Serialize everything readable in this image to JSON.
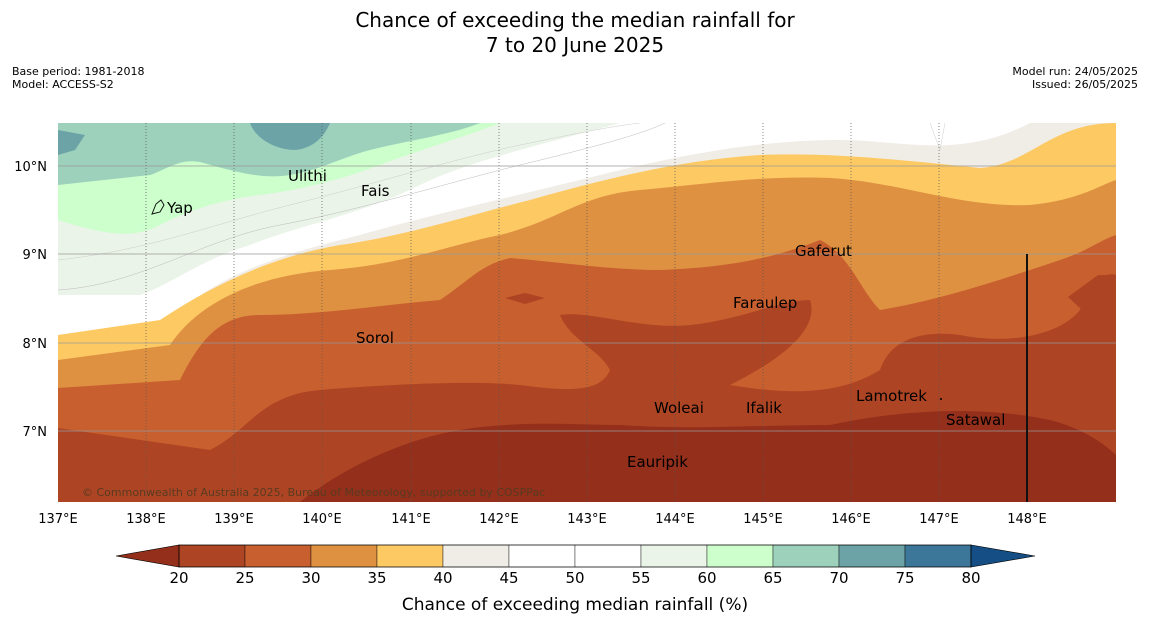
{
  "title_line1": "Chance of exceeding the median rainfall for",
  "title_line2": "7 to 20 June 2025",
  "meta_left": [
    "Base period: 1981-2018",
    "Model: ACCESS-S2"
  ],
  "meta_right": [
    "Model run: 24/05/2025",
    "Issued: 26/05/2025"
  ],
  "map": {
    "lon_ticks": [
      "137°E",
      "138°E",
      "139°E",
      "140°E",
      "141°E",
      "142°E",
      "143°E",
      "144°E",
      "145°E",
      "146°E",
      "147°E",
      "148°E"
    ],
    "lat_ticks": [
      "10°N",
      "9°N",
      "8°N",
      "7°N"
    ],
    "places": [
      {
        "name": "Ulithi"
      },
      {
        "name": "Fais"
      },
      {
        "name": "Yap"
      },
      {
        "name": "Gaferut"
      },
      {
        "name": "Faraulep"
      },
      {
        "name": "Sorol"
      },
      {
        "name": "Woleai"
      },
      {
        "name": "Ifalik"
      },
      {
        "name": "Lamotrek"
      },
      {
        "name": "Satawal"
      },
      {
        "name": "Eauripik"
      }
    ],
    "copyright": "© Commonwealth of Australia 2025, Bureau of Meteorology, supported by COSPPac"
  },
  "colorbar": {
    "title": "Chance of exceeding median rainfall (%)",
    "ticks": [
      "20",
      "25",
      "30",
      "35",
      "40",
      "45",
      "50",
      "55",
      "60",
      "65",
      "70",
      "75",
      "80"
    ],
    "colors": [
      "#942f1b",
      "#ad4524",
      "#c85f2f",
      "#df9142",
      "#fdc963",
      "#f0ece6",
      "#ffffff",
      "#ffffff",
      "#ebf4e8",
      "#ccffcc",
      "#9dd1bc",
      "#6ca3a6",
      "#3c7699",
      "#154e84"
    ]
  }
}
